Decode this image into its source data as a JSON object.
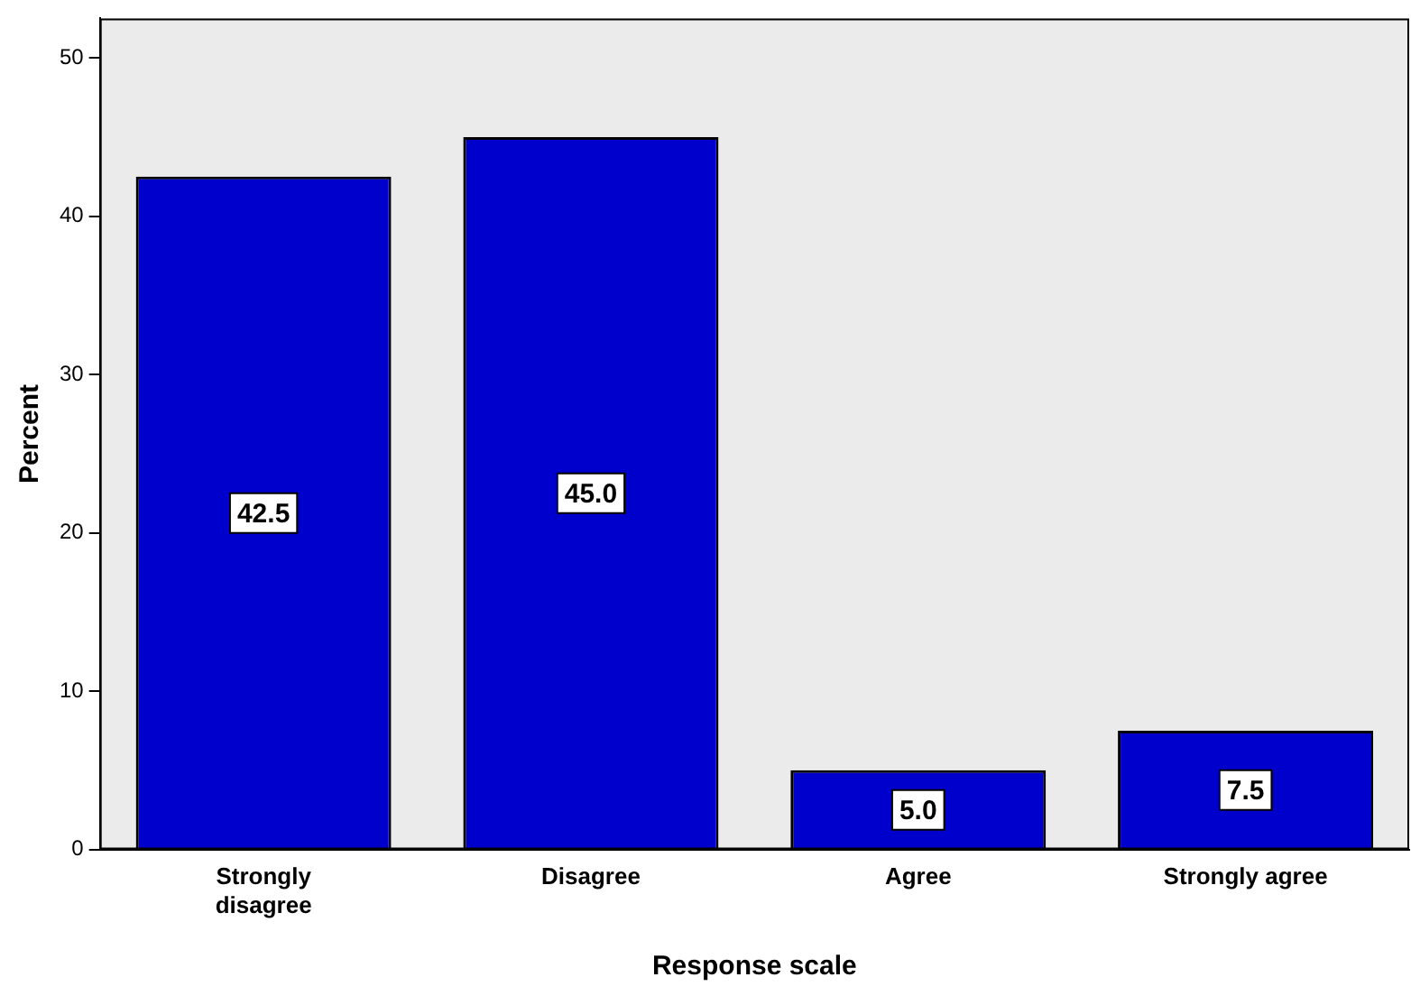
{
  "chart_data": {
    "type": "bar",
    "xlabel": "Response scale",
    "ylabel": "Percent",
    "categories": [
      "Strongly disagree",
      "Disagree",
      "Agree",
      "Strongly agree"
    ],
    "values": [
      42.5,
      45.0,
      5.0,
      7.5
    ],
    "color": "#0000cc",
    "value_labels": [
      "42.5",
      "45.0",
      "5.0",
      "7.5"
    ],
    "ylim": [
      0,
      52.5
    ],
    "yticks": [
      0,
      10,
      20,
      30,
      40,
      50
    ],
    "grid": false,
    "legend": false
  }
}
